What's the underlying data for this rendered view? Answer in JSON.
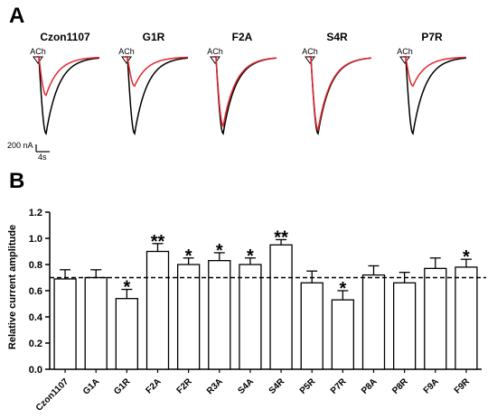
{
  "panel_a": {
    "letter": "A",
    "stimulus_label": "ACh",
    "traces": [
      {
        "title": "Czon1107",
        "control_peak": 1.0,
        "treated_peak": 0.5
      },
      {
        "title": "G1R",
        "control_peak": 1.0,
        "treated_peak": 0.38
      },
      {
        "title": "F2A",
        "control_peak": 1.0,
        "treated_peak": 0.9
      },
      {
        "title": "S4R",
        "control_peak": 1.0,
        "treated_peak": 0.95
      },
      {
        "title": "P7R",
        "control_peak": 1.0,
        "treated_peak": 0.38
      }
    ],
    "scale_bar": {
      "current": "200 nA",
      "time": "4s"
    },
    "colors": {
      "control": "#000000",
      "treated": "#e0282e"
    }
  },
  "chart_data": {
    "type": "bar",
    "panel_letter": "B",
    "categories": [
      "Czon1107",
      "G1A",
      "G1R",
      "F2A",
      "F2R",
      "R3A",
      "S4A",
      "S4R",
      "P5R",
      "P7R",
      "P8A",
      "P8R",
      "F9A",
      "F9R"
    ],
    "values": [
      0.69,
      0.7,
      0.54,
      0.9,
      0.8,
      0.83,
      0.8,
      0.95,
      0.66,
      0.53,
      0.72,
      0.66,
      0.77,
      0.78
    ],
    "errors": [
      0.07,
      0.06,
      0.07,
      0.06,
      0.05,
      0.06,
      0.05,
      0.04,
      0.09,
      0.07,
      0.07,
      0.08,
      0.08,
      0.06
    ],
    "significance": [
      "",
      "",
      "*",
      "**",
      "*",
      "*",
      "*",
      "**",
      "",
      "*",
      "",
      "",
      "",
      "*"
    ],
    "reference_line": 0.7,
    "ylabel": "Relative current amplitude",
    "xlabel": "",
    "ylim": [
      0.0,
      1.2
    ],
    "yticks": [
      "0.0",
      "0.2",
      "0.4",
      "0.6",
      "0.8",
      "1.0",
      "1.2"
    ],
    "grid": false
  }
}
